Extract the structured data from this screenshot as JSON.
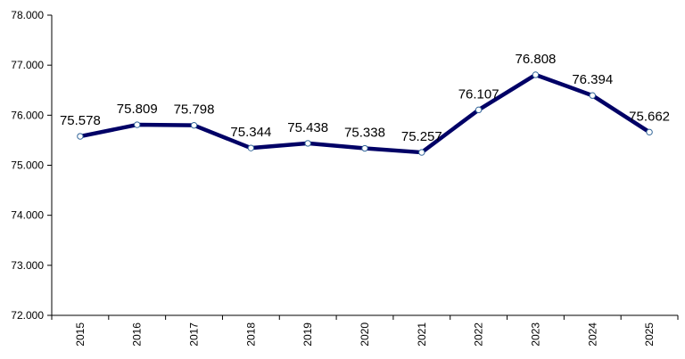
{
  "chart_data": {
    "type": "line",
    "categories": [
      "2015",
      "2016",
      "2017",
      "2018",
      "2019",
      "2020",
      "2021",
      "2022",
      "2023",
      "2024",
      "2025"
    ],
    "series": [
      {
        "values": [
          75578,
          75809,
          75798,
          75344,
          75438,
          75338,
          75257,
          76107,
          76808,
          76394,
          75662
        ],
        "data_labels": [
          "75.578",
          "75.809",
          "75.798",
          "75.344",
          "75.438",
          "75.338",
          "75.257",
          "76.107",
          "76.808",
          "76.394",
          "75.662"
        ],
        "color": "#000066"
      }
    ],
    "ylim": [
      72000,
      78000
    ],
    "yticks": [
      72000,
      73000,
      74000,
      75000,
      76000,
      77000,
      78000
    ],
    "ytick_labels": [
      "72.000",
      "73.000",
      "74.000",
      "75.000",
      "76.000",
      "77.000",
      "78.000"
    ],
    "grid": false,
    "marker_fill": "#ffffff",
    "marker_stroke": "#336699"
  }
}
